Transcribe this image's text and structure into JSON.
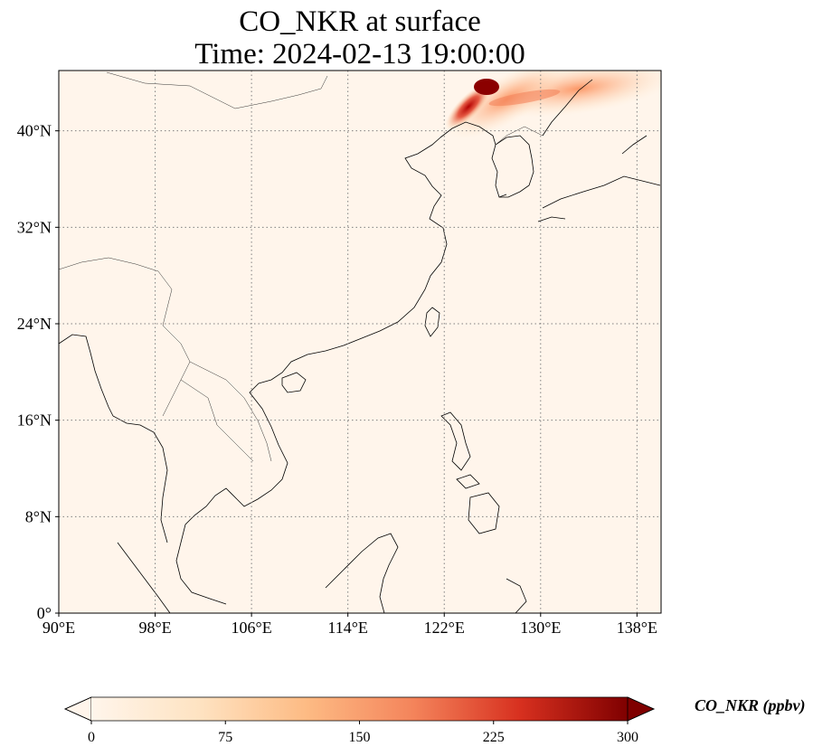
{
  "title": {
    "line1": "CO_NKR at surface",
    "line2": "Time: 2024-02-13 19:00:00"
  },
  "map": {
    "projection": "PlateCarree",
    "lon_range": [
      90,
      140
    ],
    "lat_range": [
      0,
      45
    ],
    "gridlines": "dotted",
    "x_ticks": [
      {
        "lon": 90,
        "label": "90°E"
      },
      {
        "lon": 98,
        "label": "98°E"
      },
      {
        "lon": 106,
        "label": "106°E"
      },
      {
        "lon": 114,
        "label": "114°E"
      },
      {
        "lon": 122,
        "label": "122°E"
      },
      {
        "lon": 130,
        "label": "130°E"
      },
      {
        "lon": 138,
        "label": "138°E"
      }
    ],
    "y_ticks": [
      {
        "lat": 0,
        "label": "0°"
      },
      {
        "lat": 8,
        "label": "8°N"
      },
      {
        "lat": 16,
        "label": "16°N"
      },
      {
        "lat": 24,
        "label": "24°N"
      },
      {
        "lat": 32,
        "label": "32°N"
      },
      {
        "lat": 40,
        "label": "40°N"
      }
    ],
    "background_color": "#fff5eb",
    "coastline_color": "#000000"
  },
  "colorbar": {
    "title": "CO_NKR (ppbv)",
    "colormap": "OrRd",
    "extend": "both",
    "range": [
      0,
      300
    ],
    "tick_values": [
      0,
      75,
      150,
      225,
      300
    ],
    "tick_labels": [
      "0",
      "75",
      "150",
      "225",
      "300"
    ]
  }
}
